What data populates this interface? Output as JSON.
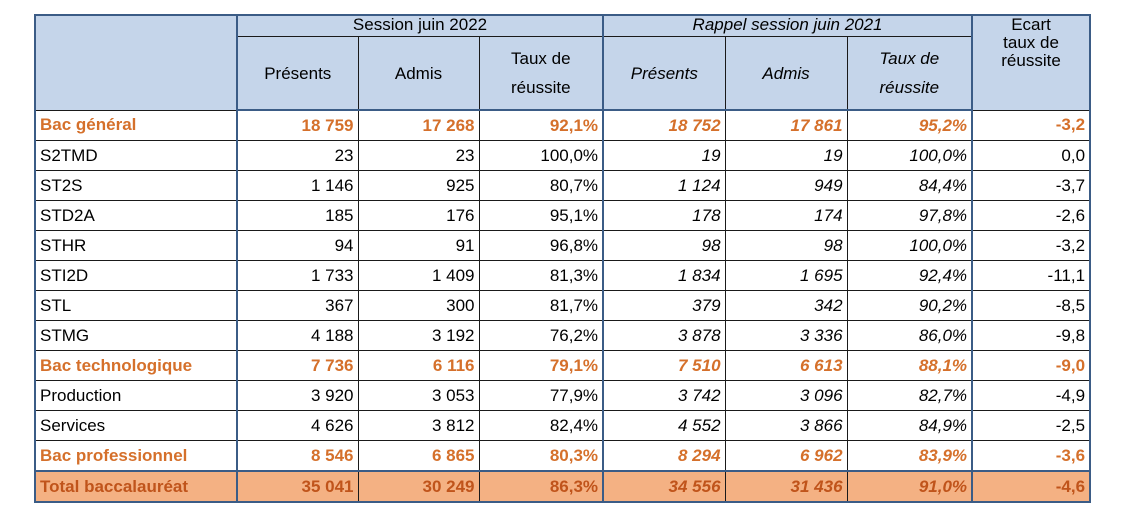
{
  "header": {
    "session_2022": "Session juin 2022",
    "session_2021": "Rappel session juin 2021",
    "col_presents": "Présents",
    "col_admis": "Admis",
    "col_taux_line1": "Taux de",
    "col_taux_line2": "réussite",
    "ecart_line1": "Ecart",
    "ecart_line2": "taux de",
    "ecart_line3": "réussite"
  },
  "rows": [
    {
      "label": "Bac général",
      "p22": "18 759",
      "a22": "17 268",
      "t22": "92,1%",
      "p21": "18 752",
      "a21": "17 861",
      "t21": "95,2%",
      "ecart": "-3,2"
    },
    {
      "label": "S2TMD",
      "p22": "23",
      "a22": "23",
      "t22": "100,0%",
      "p21": "19",
      "a21": "19",
      "t21": "100,0%",
      "ecart": "0,0"
    },
    {
      "label": "ST2S",
      "p22": "1 146",
      "a22": "925",
      "t22": "80,7%",
      "p21": "1 124",
      "a21": "949",
      "t21": "84,4%",
      "ecart": "-3,7"
    },
    {
      "label": "STD2A",
      "p22": "185",
      "a22": "176",
      "t22": "95,1%",
      "p21": "178",
      "a21": "174",
      "t21": "97,8%",
      "ecart": "-2,6"
    },
    {
      "label": "STHR",
      "p22": "94",
      "a22": "91",
      "t22": "96,8%",
      "p21": "98",
      "a21": "98",
      "t21": "100,0%",
      "ecart": "-3,2"
    },
    {
      "label": "STI2D",
      "p22": "1 733",
      "a22": "1 409",
      "t22": "81,3%",
      "p21": "1 834",
      "a21": "1 695",
      "t21": "92,4%",
      "ecart": "-11,1"
    },
    {
      "label": "STL",
      "p22": "367",
      "a22": "300",
      "t22": "81,7%",
      "p21": "379",
      "a21": "342",
      "t21": "90,2%",
      "ecart": "-8,5"
    },
    {
      "label": "STMG",
      "p22": "4 188",
      "a22": "3 192",
      "t22": "76,2%",
      "p21": "3 878",
      "a21": "3 336",
      "t21": "86,0%",
      "ecart": "-9,8"
    },
    {
      "label": "Bac technologique",
      "p22": "7 736",
      "a22": "6 116",
      "t22": "79,1%",
      "p21": "7 510",
      "a21": "6 613",
      "t21": "88,1%",
      "ecart": "-9,0"
    },
    {
      "label": "Production",
      "p22": "3 920",
      "a22": "3 053",
      "t22": "77,9%",
      "p21": "3 742",
      "a21": "3 096",
      "t21": "82,7%",
      "ecart": "-4,9"
    },
    {
      "label": "Services",
      "p22": "4 626",
      "a22": "3 812",
      "t22": "82,4%",
      "p21": "4 552",
      "a21": "3 866",
      "t21": "84,9%",
      "ecart": "-2,5"
    },
    {
      "label": "Bac professionnel",
      "p22": "8 546",
      "a22": "6 865",
      "t22": "80,3%",
      "p21": "8 294",
      "a21": "6 962",
      "t21": "83,9%",
      "ecart": "-3,6"
    },
    {
      "label": "Total baccalauréat",
      "p22": "35 041",
      "a22": "30 249",
      "t22": "86,3%",
      "p21": "34 556",
      "a21": "31 436",
      "t21": "91,0%",
      "ecart": "-4,6"
    }
  ],
  "colors": {
    "header_bg": "#c5d5ea",
    "total_text": "#d5702b",
    "grand_total_bg": "#f4b183",
    "border_blue": "#3b5c86"
  }
}
